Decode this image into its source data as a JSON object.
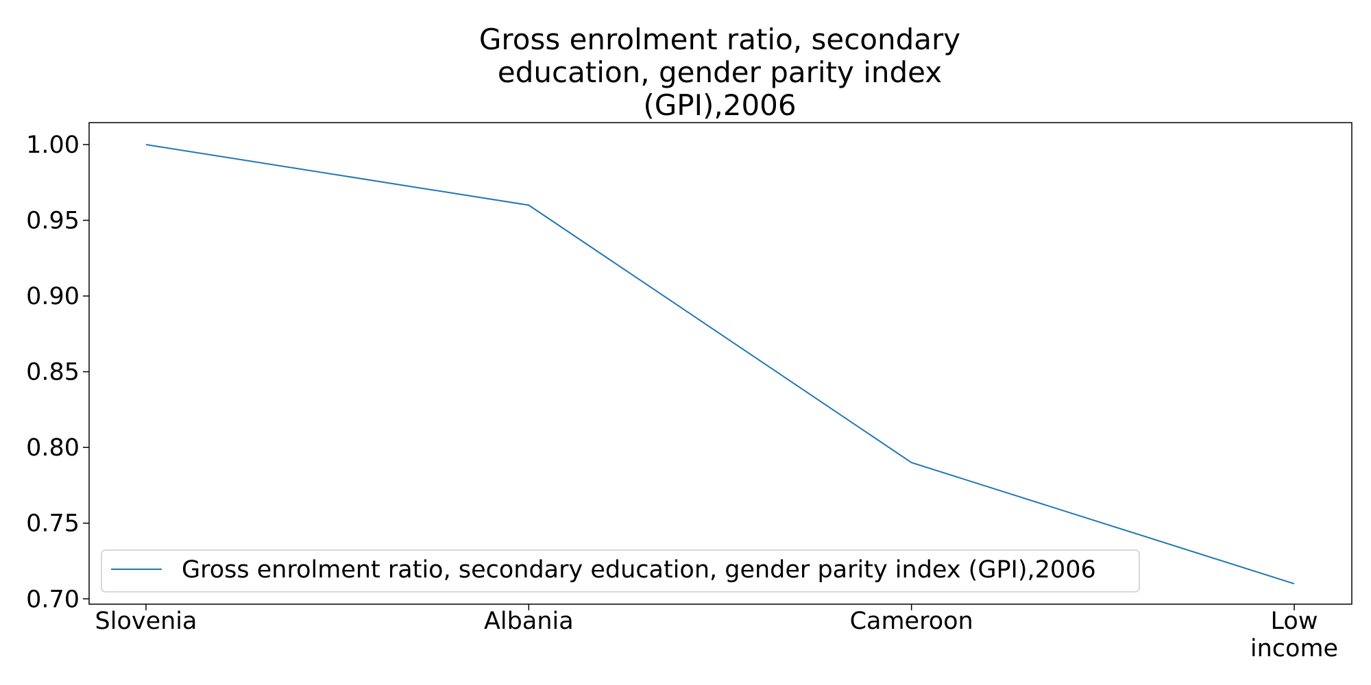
{
  "chart_data": {
    "type": "line",
    "title_lines": [
      "Gross enrolment ratio, secondary",
      "education, gender parity index",
      "(GPI),2006"
    ],
    "categories": [
      "Slovenia",
      "Albania",
      "Cameroon",
      "Low income"
    ],
    "category_lines": [
      [
        "Slovenia"
      ],
      [
        "Albania"
      ],
      [
        "Cameroon"
      ],
      [
        "Low",
        "income"
      ]
    ],
    "series": [
      {
        "name": "Gross enrolment ratio, secondary education, gender parity index (GPI),2006",
        "values": [
          1.0,
          0.96,
          0.79,
          0.71
        ],
        "color": "#1f77b4"
      }
    ],
    "yticks": [
      "0.70",
      "0.75",
      "0.80",
      "0.85",
      "0.90",
      "0.95",
      "1.00"
    ],
    "ylim": [
      0.6965,
      1.0145
    ],
    "grid": false,
    "legend_position": "lower-left"
  }
}
